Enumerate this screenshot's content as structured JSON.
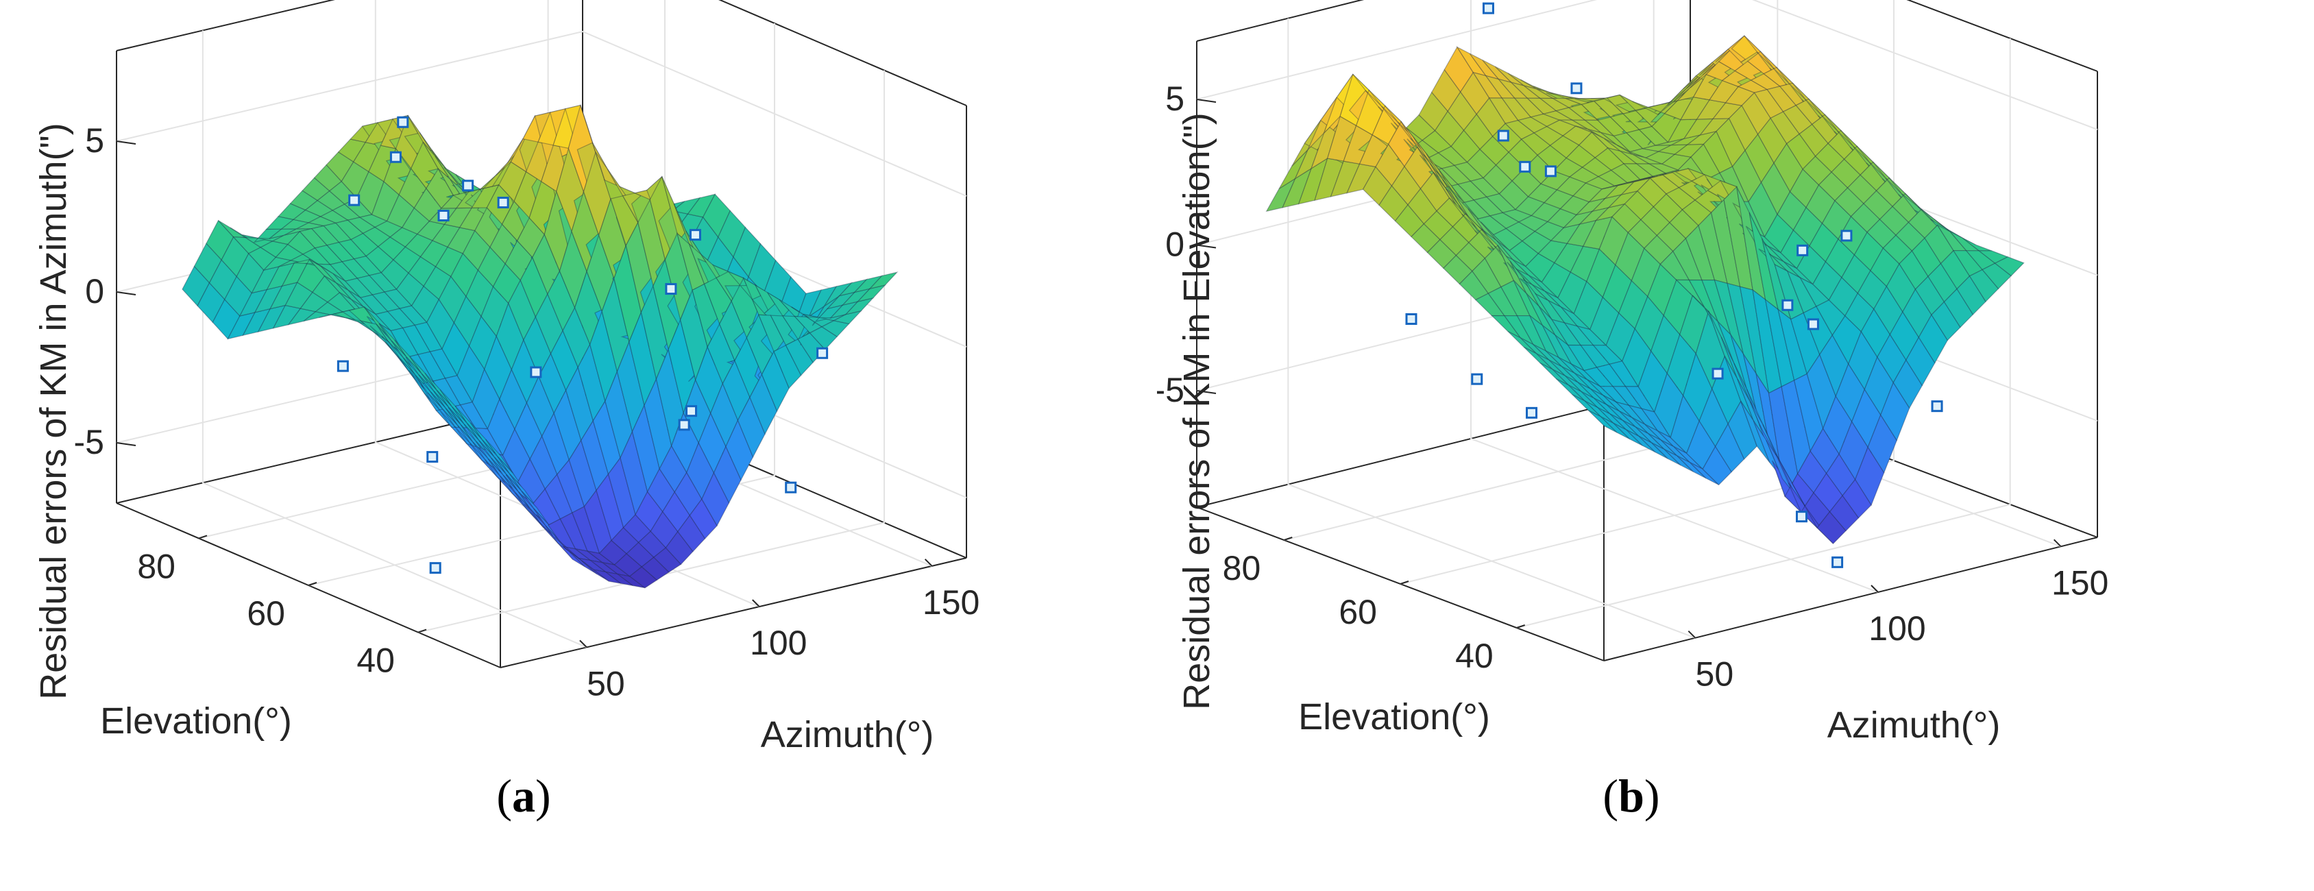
{
  "chart_data": [
    {
      "type": "surface3d",
      "panel_label": "a",
      "zlabel": "Residual errors of KM in Azimuth(\")",
      "xlabel": "Azimuth(°)",
      "ylabel": "Elevation(°)",
      "xticks": [
        "50",
        "100",
        "150"
      ],
      "yticks": [
        "40",
        "60",
        "80"
      ],
      "zticks": [
        "5",
        "0",
        "-5"
      ],
      "xlim": [
        25,
        160
      ],
      "ylim": [
        25,
        95
      ],
      "zlim": [
        -7,
        8
      ],
      "grid": true,
      "colormap": "parula",
      "surface_z_grid": [
        [
          -1,
          -3,
          -5,
          -6,
          -6.5,
          -6,
          -5,
          -3,
          -1,
          0,
          1,
          2
        ],
        [
          0,
          -2,
          -4,
          -5.5,
          -6,
          -5,
          -3,
          0,
          2,
          1,
          0,
          1
        ],
        [
          1,
          -1,
          -3,
          -4,
          -2,
          0,
          3,
          5,
          2,
          -1,
          -3,
          0
        ],
        [
          2,
          0,
          -2,
          -2,
          1,
          3,
          7,
          3,
          -1,
          -3,
          -2,
          1
        ],
        [
          1,
          1,
          0,
          0,
          2,
          4,
          6,
          1,
          -2,
          -2,
          0,
          2
        ],
        [
          0,
          2,
          1,
          1,
          2,
          3,
          2,
          0,
          -1,
          0,
          1,
          1
        ],
        [
          -1,
          1,
          2,
          2,
          2,
          5,
          3,
          2,
          0,
          1,
          0,
          -1
        ],
        [
          0,
          2,
          1,
          2,
          3,
          4,
          2,
          1,
          1,
          0,
          -1,
          -2
        ]
      ],
      "scatter_points": [
        {
          "x": 30,
          "y": 40,
          "z": -5
        },
        {
          "x": 35,
          "y": 60,
          "z": 0
        },
        {
          "x": 45,
          "y": 50,
          "z": -2.5
        },
        {
          "x": 70,
          "y": 80,
          "z": 3
        },
        {
          "x": 80,
          "y": 70,
          "z": 3
        },
        {
          "x": 90,
          "y": 85,
          "z": 3.5
        },
        {
          "x": 95,
          "y": 75,
          "z": 3.2
        },
        {
          "x": 100,
          "y": 90,
          "z": 4
        },
        {
          "x": 110,
          "y": 78,
          "z": 2
        },
        {
          "x": 75,
          "y": 50,
          "z": -0.5
        },
        {
          "x": 110,
          "y": 45,
          "z": -2.8
        },
        {
          "x": 120,
          "y": 50,
          "z": -3
        },
        {
          "x": 130,
          "y": 60,
          "z": 0
        },
        {
          "x": 145,
          "y": 65,
          "z": 1
        },
        {
          "x": 150,
          "y": 45,
          "z": -1.5
        },
        {
          "x": 125,
          "y": 35,
          "z": -4.5
        }
      ]
    },
    {
      "type": "surface3d",
      "panel_label": "b",
      "zlabel": "Residual errors of KM in Elevation(\")",
      "xlabel": "Azimuth(°)",
      "ylabel": "Elevation(°)",
      "xticks": [
        "50",
        "100",
        "150"
      ],
      "yticks": [
        "40",
        "60",
        "80"
      ],
      "zticks": [
        "5",
        "0",
        "-5"
      ],
      "xlim": [
        25,
        160
      ],
      "ylim": [
        25,
        95
      ],
      "zlim": [
        -9,
        7
      ],
      "grid": true,
      "colormap": "parula",
      "surface_z_grid": [
        [
          -2,
          -3,
          -4,
          -5,
          -4,
          -6,
          -8,
          -7,
          -4,
          -2,
          -1,
          0
        ],
        [
          -1,
          -2,
          -3,
          -4,
          0,
          -3,
          -7,
          -5,
          -2,
          0,
          1,
          0
        ],
        [
          0,
          -1,
          -2,
          -2,
          1,
          2,
          3,
          0,
          -1,
          1,
          2,
          0
        ],
        [
          1,
          2,
          0,
          -1,
          2,
          3,
          3,
          1,
          0,
          2,
          3,
          1
        ],
        [
          2,
          3,
          1,
          0,
          1,
          2,
          2,
          2,
          3,
          4,
          4,
          2
        ],
        [
          3,
          5,
          3,
          1,
          1,
          2,
          3,
          2,
          2,
          4,
          5,
          3
        ],
        [
          2,
          6,
          4,
          2,
          2,
          3,
          3,
          3,
          3,
          2,
          3,
          2
        ],
        [
          1,
          3,
          2,
          2,
          3,
          5,
          4,
          3,
          2,
          1,
          0,
          1
        ]
      ],
      "scatter_points": [
        {
          "x": 28,
          "y": 60,
          "z": 0
        },
        {
          "x": 38,
          "y": 55,
          "z": -2
        },
        {
          "x": 45,
          "y": 50,
          "z": -3
        },
        {
          "x": 75,
          "y": 70,
          "z": 3
        },
        {
          "x": 85,
          "y": 80,
          "z": 3
        },
        {
          "x": 90,
          "y": 75,
          "z": 2
        },
        {
          "x": 100,
          "y": 92,
          "z": 6
        },
        {
          "x": 105,
          "y": 80,
          "z": 4
        },
        {
          "x": 80,
          "y": 40,
          "z": -2
        },
        {
          "x": 95,
          "y": 35,
          "z": -7
        },
        {
          "x": 100,
          "y": 32,
          "z": -8.5
        },
        {
          "x": 115,
          "y": 50,
          "z": -1.5
        },
        {
          "x": 130,
          "y": 55,
          "z": -3
        },
        {
          "x": 135,
          "y": 60,
          "z": -1
        },
        {
          "x": 155,
          "y": 65,
          "z": -1.5
        },
        {
          "x": 140,
          "y": 40,
          "z": -5
        }
      ]
    }
  ]
}
